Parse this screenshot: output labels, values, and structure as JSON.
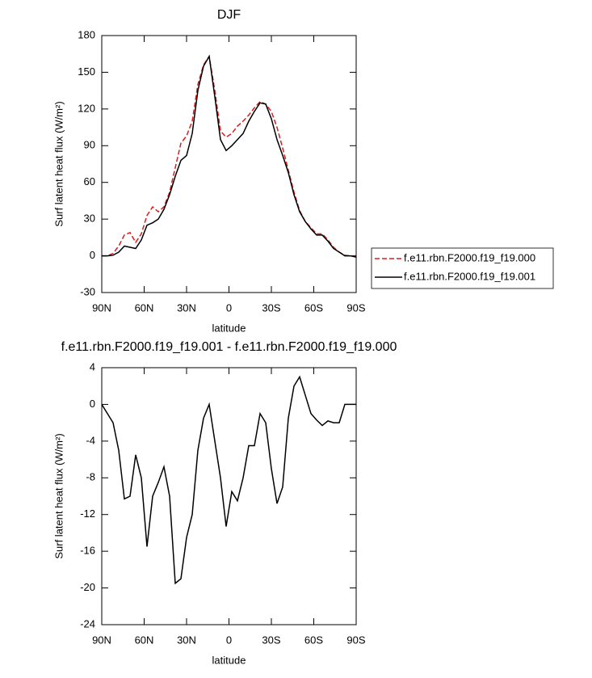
{
  "chart_data": [
    {
      "type": "line",
      "title": "DJF",
      "ylabel": "Surf latent heat flux (W/m²)",
      "xlabel": "latitude",
      "x": [
        90,
        86,
        82,
        78,
        74,
        70,
        66,
        62,
        58,
        54,
        50,
        46,
        42,
        38,
        34,
        30,
        26,
        22,
        18,
        14,
        10,
        6,
        2,
        -2,
        -6,
        -10,
        -14,
        -18,
        -22,
        -26,
        -30,
        -34,
        -38,
        -42,
        -46,
        -50,
        -54,
        -58,
        -62,
        -66,
        -70,
        -74,
        -78,
        -82,
        -86,
        -90
      ],
      "xlim": [
        90,
        -90
      ],
      "xticks": [
        {
          "value": 90,
          "label": "90N"
        },
        {
          "value": 60,
          "label": "60N"
        },
        {
          "value": 30,
          "label": "30N"
        },
        0,
        {
          "value": -30,
          "label": "30S"
        },
        {
          "value": -60,
          "label": "60S"
        },
        {
          "value": -90,
          "label": "90S"
        }
      ],
      "ylim": [
        -30,
        180
      ],
      "yticks": [
        -30,
        0,
        30,
        60,
        90,
        120,
        150,
        180
      ],
      "series": [
        {
          "name": "f.e11.rbn.F2000.f19_f19.000",
          "color": "#e0191c",
          "line_style": "dashed",
          "values": [
            0,
            0,
            2,
            8,
            17,
            19,
            11,
            18,
            33,
            40,
            36,
            40,
            52,
            72,
            92,
            98,
            110,
            140,
            156,
            163,
            135,
            102,
            97,
            100,
            106,
            110,
            115,
            121,
            126,
            124,
            118,
            105,
            88,
            70,
            52,
            37,
            28,
            23,
            18,
            18,
            13,
            7,
            3,
            0.5,
            0,
            -1
          ]
        },
        {
          "name": "f.e11.rbn.F2000.f19_f19.001",
          "color": "#000000",
          "line_style": "solid",
          "values": [
            0,
            0,
            0.5,
            3,
            8,
            7,
            6,
            13,
            25,
            27,
            30,
            38,
            50,
            65,
            78,
            82,
            100,
            135,
            155,
            163,
            130,
            95,
            86,
            90,
            95,
            100,
            110,
            118,
            125,
            124,
            112,
            95,
            82,
            68,
            50,
            36,
            28,
            22,
            17,
            17,
            12,
            6,
            3,
            0,
            0,
            -1
          ]
        }
      ]
    },
    {
      "type": "line",
      "title": "f.e11.rbn.F2000.f19_f19.001 - f.e11.rbn.F2000.f19_f19.000",
      "ylabel": "Surf latent heat flux (W/m²)",
      "xlabel": "latitude",
      "x": [
        90,
        86,
        82,
        78,
        74,
        70,
        66,
        62,
        58,
        54,
        50,
        46,
        42,
        38,
        34,
        30,
        26,
        22,
        18,
        14,
        10,
        6,
        2,
        -2,
        -6,
        -10,
        -14,
        -18,
        -22,
        -26,
        -30,
        -34,
        -38,
        -42,
        -46,
        -50,
        -54,
        -58,
        -62,
        -66,
        -70,
        -74,
        -78,
        -82,
        -86,
        -90
      ],
      "xlim": [
        90,
        -90
      ],
      "xticks": [
        {
          "value": 90,
          "label": "90N"
        },
        {
          "value": 60,
          "label": "60N"
        },
        {
          "value": 30,
          "label": "30N"
        },
        0,
        {
          "value": -30,
          "label": "30S"
        },
        {
          "value": -60,
          "label": "60S"
        },
        {
          "value": -90,
          "label": "90S"
        }
      ],
      "ylim": [
        -24,
        4
      ],
      "yticks": [
        -24,
        -20,
        -16,
        -12,
        -8,
        -4,
        0,
        4
      ],
      "series": [
        {
          "color": "#000000",
          "line_style": "solid",
          "values": [
            0,
            -1,
            -2,
            -5,
            -10.3,
            -10,
            -5.5,
            -8,
            -15.5,
            -10,
            -8.5,
            -6.8,
            -10,
            -19.5,
            -19,
            -14.5,
            -12,
            -5,
            -1.5,
            0,
            -4,
            -8,
            -13.3,
            -9.5,
            -10.5,
            -8,
            -4.5,
            -4.5,
            -1,
            -2,
            -7,
            -10.8,
            -9,
            -1.5,
            2,
            3,
            1,
            -1,
            -1.7,
            -2.3,
            -1.8,
            -2,
            -2,
            0,
            0,
            0
          ]
        }
      ]
    }
  ]
}
